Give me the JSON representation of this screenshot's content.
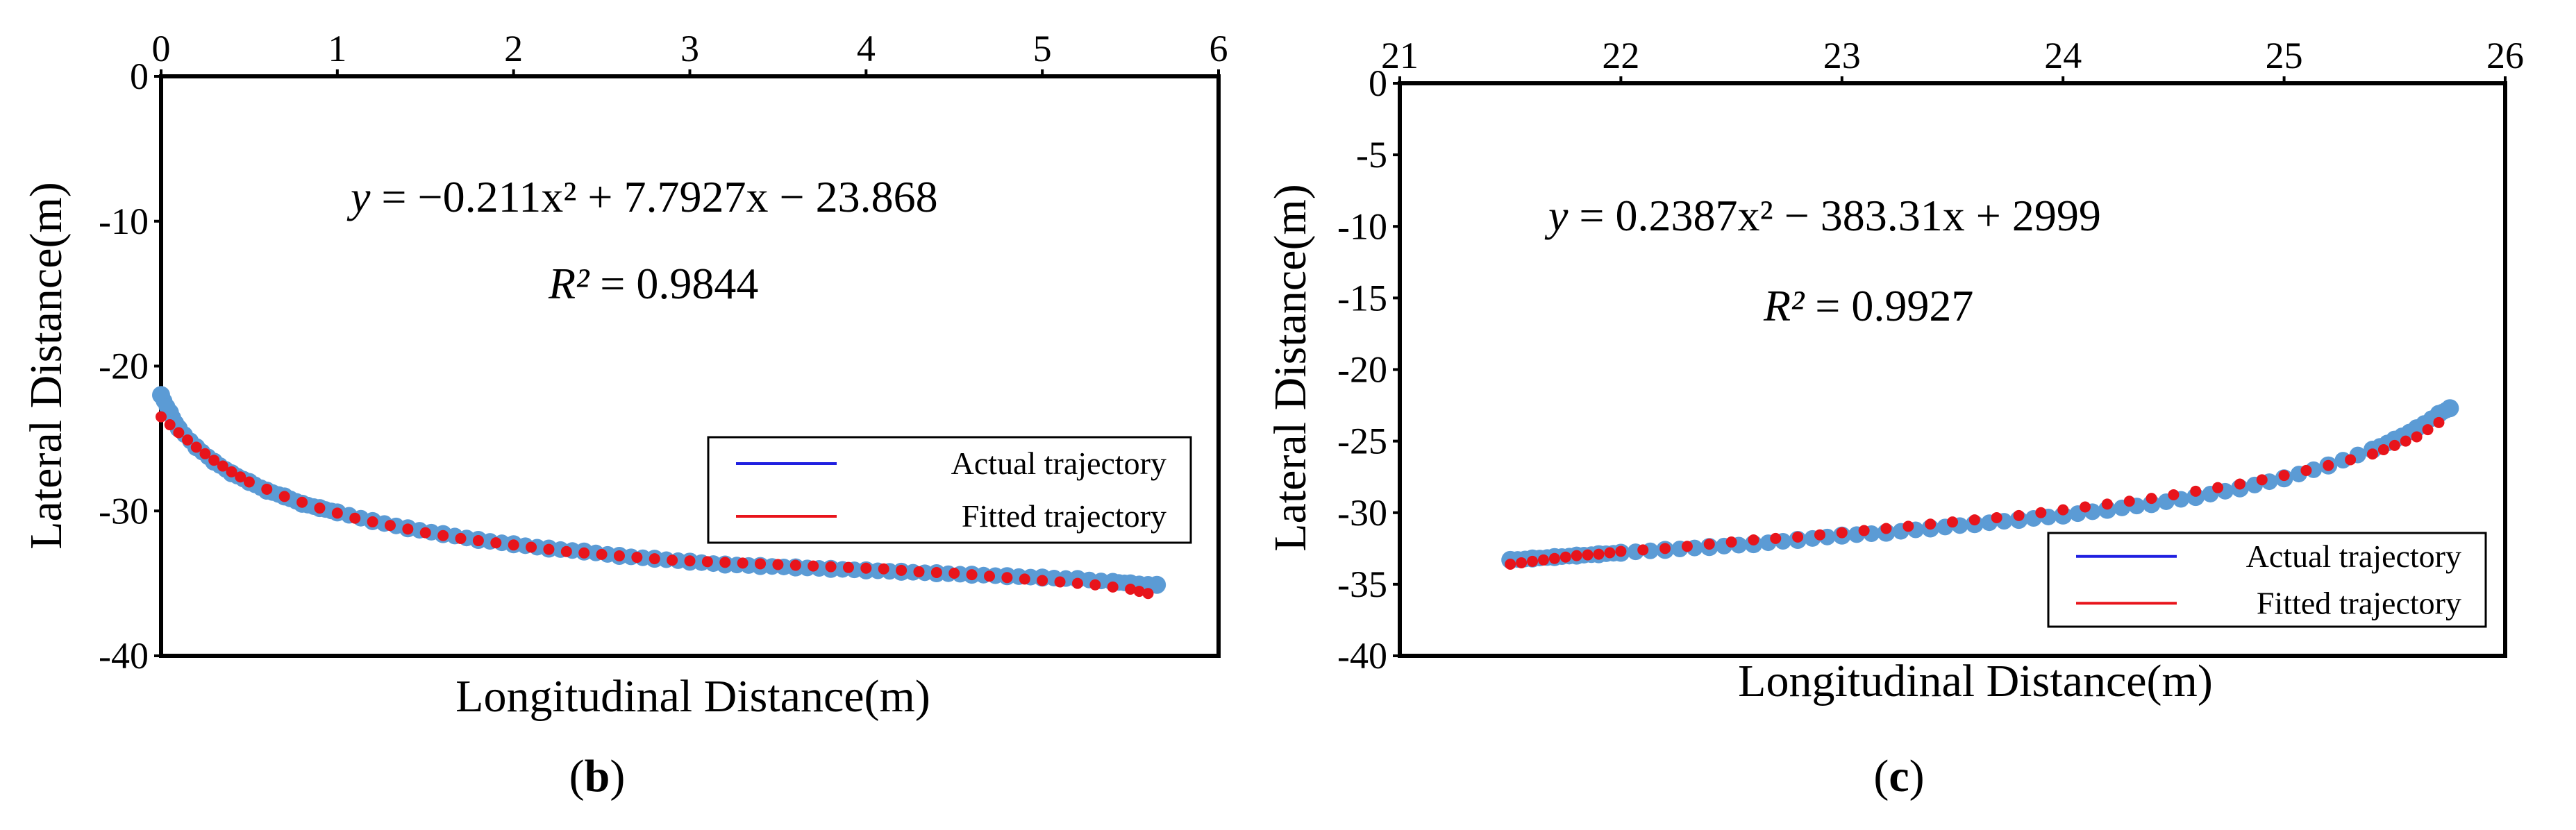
{
  "colors": {
    "actual": "#5b9bd5",
    "fitted": "#e8141b",
    "legend_actual_line": "#1f1fe0",
    "legend_fitted_line": "#e8141b",
    "frame": "#000000"
  },
  "chart_data": [
    {
      "id": "b",
      "type": "scatter",
      "panel_label": "(b)",
      "panel_label_letter": "b",
      "xlabel": "Longitudinal Distance(m)",
      "ylabel": "Lateral Distance(m)",
      "xlim": [
        0,
        6
      ],
      "ylim": [
        -40,
        0
      ],
      "x_axis_position": "top",
      "xticks": [
        "0",
        "1",
        "2",
        "3",
        "4",
        "5",
        "6"
      ],
      "yticks": [
        "0",
        "-10",
        "-20",
        "-30",
        "-40"
      ],
      "xtick_values": [
        0,
        1,
        2,
        3,
        4,
        5,
        6
      ],
      "ytick_values": [
        0,
        -10,
        -20,
        -30,
        -40
      ],
      "equation": {
        "prefix": "y",
        "body": " = −0.211x² + 7.7927x − 23.868"
      },
      "r2": {
        "prefix": "R²",
        "body": " = 0.9844"
      },
      "legend": [
        "Actual trajectory",
        "Fitted trajectory"
      ],
      "legend_position": "bottom-right",
      "series": [
        {
          "name": "Actual trajectory",
          "x": [
            0.0,
            0.05,
            0.1,
            0.2,
            0.3,
            0.4,
            0.5,
            0.6,
            0.7,
            0.8,
            0.9,
            1.0,
            1.2,
            1.4,
            1.6,
            1.8,
            2.0,
            2.2,
            2.4,
            2.6,
            2.8,
            3.0,
            3.2,
            3.4,
            3.6,
            3.8,
            4.0,
            4.2,
            4.4,
            4.6,
            4.8,
            5.0,
            5.2,
            5.4,
            5.5,
            5.65
          ],
          "y": [
            -22.0,
            -23.2,
            -24.3,
            -25.6,
            -26.6,
            -27.4,
            -28.0,
            -28.6,
            -29.0,
            -29.5,
            -29.8,
            -30.1,
            -30.7,
            -31.2,
            -31.6,
            -32.0,
            -32.3,
            -32.6,
            -32.8,
            -33.1,
            -33.3,
            -33.5,
            -33.7,
            -33.8,
            -33.9,
            -34.0,
            -34.1,
            -34.2,
            -34.3,
            -34.4,
            -34.5,
            -34.6,
            -34.7,
            -34.9,
            -35.0,
            -35.1
          ]
        },
        {
          "name": "Fitted trajectory",
          "x": [
            0.0,
            0.1,
            0.2,
            0.3,
            0.4,
            0.5,
            0.7,
            0.9,
            1.1,
            1.3,
            1.5,
            1.7,
            1.9,
            2.1,
            2.3,
            2.5,
            2.7,
            2.9,
            3.1,
            3.3,
            3.5,
            3.7,
            3.9,
            4.1,
            4.3,
            4.5,
            4.7,
            4.9,
            5.1,
            5.3,
            5.5,
            5.6
          ],
          "y": [
            -23.5,
            -24.6,
            -25.6,
            -26.5,
            -27.3,
            -28.0,
            -29.0,
            -29.8,
            -30.5,
            -31.0,
            -31.5,
            -31.9,
            -32.2,
            -32.5,
            -32.8,
            -33.0,
            -33.2,
            -33.4,
            -33.5,
            -33.6,
            -33.7,
            -33.8,
            -33.9,
            -34.0,
            -34.2,
            -34.3,
            -34.5,
            -34.7,
            -34.9,
            -35.1,
            -35.4,
            -35.7
          ]
        }
      ]
    },
    {
      "id": "c",
      "type": "scatter",
      "panel_label": "(c)",
      "panel_label_letter": "c",
      "xlabel": "Longitudinal Distance(m)",
      "ylabel": "Lateral Distance(m)",
      "xlim": [
        21,
        26
      ],
      "ylim": [
        -40,
        0
      ],
      "x_axis_position": "top",
      "xticks": [
        "21",
        "22",
        "23",
        "24",
        "25",
        "26"
      ],
      "yticks": [
        "0",
        "-5",
        "-10",
        "-15",
        "-20",
        "-25",
        "-30",
        "-35",
        "-40"
      ],
      "xtick_values": [
        21,
        22,
        23,
        24,
        25,
        26
      ],
      "ytick_values": [
        0,
        -5,
        -10,
        -15,
        -20,
        -25,
        -30,
        -35,
        -40
      ],
      "equation": {
        "prefix": "y",
        "body": " = 0.2387x² − 383.31x + 2999"
      },
      "r2": {
        "prefix": "R²",
        "body": " = 0.9927"
      },
      "legend": [
        "Actual trajectory",
        "Fitted trajectory"
      ],
      "legend_position": "bottom-right",
      "series": [
        {
          "name": "Actual trajectory",
          "x": [
            21.5,
            21.6,
            21.7,
            21.8,
            21.9,
            22.0,
            22.2,
            22.4,
            22.6,
            22.8,
            23.0,
            23.2,
            23.4,
            23.6,
            23.8,
            24.0,
            24.2,
            24.4,
            24.6,
            24.8,
            25.0,
            25.2,
            25.4,
            25.5,
            25.6,
            25.7,
            25.75
          ],
          "y": [
            -33.3,
            -33.2,
            -33.1,
            -33.0,
            -32.9,
            -32.8,
            -32.6,
            -32.4,
            -32.2,
            -31.9,
            -31.6,
            -31.4,
            -31.1,
            -30.8,
            -30.5,
            -30.2,
            -29.8,
            -29.4,
            -28.9,
            -28.3,
            -27.6,
            -26.7,
            -25.6,
            -24.9,
            -24.1,
            -23.1,
            -22.7
          ]
        },
        {
          "name": "Fitted trajectory",
          "x": [
            21.5,
            21.6,
            21.7,
            21.8,
            21.9,
            22.0,
            22.2,
            22.4,
            22.6,
            22.8,
            23.0,
            23.2,
            23.4,
            23.6,
            23.8,
            24.0,
            24.2,
            24.4,
            24.6,
            24.8,
            25.0,
            25.2,
            25.4,
            25.5,
            25.6,
            25.7
          ],
          "y": [
            -33.6,
            -33.4,
            -33.2,
            -33.0,
            -32.9,
            -32.7,
            -32.5,
            -32.2,
            -31.9,
            -31.7,
            -31.4,
            -31.1,
            -30.8,
            -30.5,
            -30.2,
            -29.8,
            -29.4,
            -29.0,
            -28.5,
            -28.0,
            -27.4,
            -26.7,
            -25.9,
            -25.3,
            -24.7,
            -23.7
          ]
        }
      ]
    }
  ]
}
